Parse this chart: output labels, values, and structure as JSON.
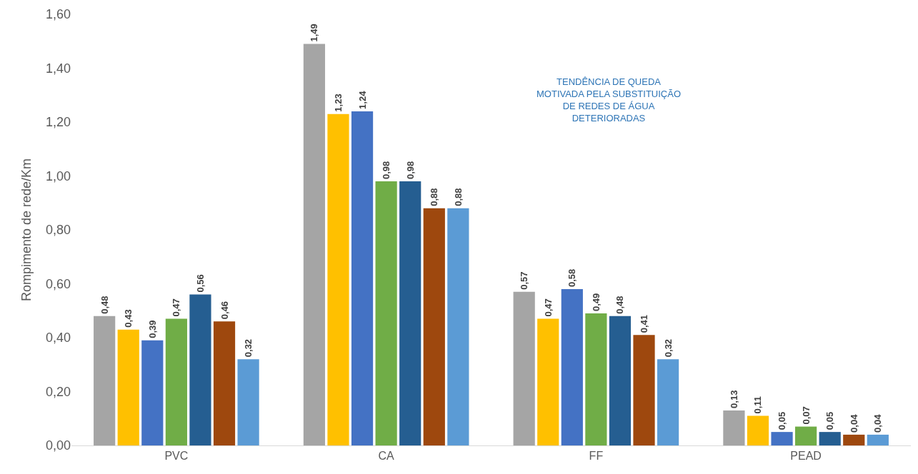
{
  "chart_data": {
    "type": "bar",
    "ylabel": "Rompimento de rede/Km",
    "categories": [
      "PVC",
      "CA",
      "FF",
      "PEAD"
    ],
    "series": [
      {
        "color": "#a5a5a5",
        "values": [
          0.48,
          1.49,
          0.57,
          0.13
        ],
        "value_labels": [
          "0,48",
          "1,49",
          "0,57",
          "0,13"
        ]
      },
      {
        "color": "#ffc000",
        "values": [
          0.43,
          1.23,
          0.47,
          0.11
        ],
        "value_labels": [
          "0,43",
          "1,23",
          "0,47",
          "0,11"
        ]
      },
      {
        "color": "#4472c4",
        "values": [
          0.39,
          1.24,
          0.58,
          0.05
        ],
        "value_labels": [
          "0,39",
          "1,24",
          "0,58",
          "0,05"
        ]
      },
      {
        "color": "#70ad47",
        "values": [
          0.47,
          0.98,
          0.49,
          0.07
        ],
        "value_labels": [
          "0,47",
          "0,98",
          "0,49",
          "0,07"
        ]
      },
      {
        "color": "#255e91",
        "values": [
          0.56,
          0.98,
          0.48,
          0.05
        ],
        "value_labels": [
          "0,56",
          "0,98",
          "0,48",
          "0,05"
        ]
      },
      {
        "color": "#9e480e",
        "values": [
          0.46,
          0.88,
          0.41,
          0.04
        ],
        "value_labels": [
          "0,46",
          "0,88",
          "0,41",
          "0,04"
        ]
      },
      {
        "color": "#5b9bd5",
        "values": [
          0.32,
          0.88,
          0.32,
          0.04
        ],
        "value_labels": [
          "0,32",
          "0,88",
          "0,32",
          "0,04"
        ]
      }
    ],
    "ylim": [
      0,
      1.6
    ],
    "yticks": [
      {
        "value": 0,
        "label": "0,00"
      },
      {
        "value": 0.2,
        "label": "0,20"
      },
      {
        "value": 0.4,
        "label": "0,40"
      },
      {
        "value": 0.6,
        "label": "0,60"
      },
      {
        "value": 0.8,
        "label": "0,80"
      },
      {
        "value": 1.0,
        "label": "1,00"
      },
      {
        "value": 1.2,
        "label": "1,20"
      },
      {
        "value": 1.4,
        "label": "1,40"
      },
      {
        "value": 1.6,
        "label": "1,60"
      }
    ],
    "legend": false,
    "annotations": [
      "TENDÊNCIA DE QUEDA\nMOTIVADA PELA SUBSTITUIÇÃO\nDE REDES DE ÁGUA\nDETERIORADAS"
    ]
  }
}
